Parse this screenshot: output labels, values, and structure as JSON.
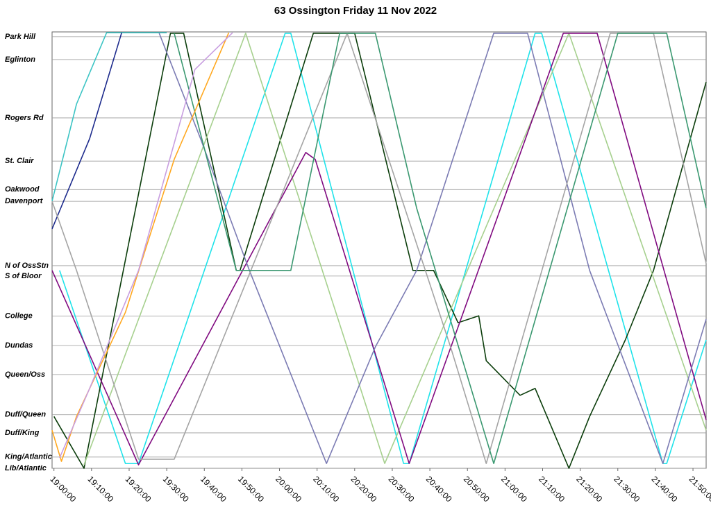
{
  "chart_data": {
    "type": "line",
    "title": "63 Ossington Friday 11 Nov 2022",
    "xlim": [
      "18:59:30",
      "21:53:30"
    ],
    "xticks": [
      "19:00:00",
      "19:10:00",
      "19:20:00",
      "19:30:00",
      "19:40:00",
      "19:50:00",
      "20:00:00",
      "20:10:00",
      "20:20:00",
      "20:30:00",
      "20:40:00",
      "20:50:00",
      "21:00:00",
      "21:10:00",
      "21:20:00",
      "21:30:00",
      "21:40:00",
      "21:50:00"
    ],
    "ylim": [
      0,
      101
    ],
    "yticks": [
      {
        "value": 99.9,
        "label": "Park Hill"
      },
      {
        "value": 94.6,
        "label": "Eglinton"
      },
      {
        "value": 81.1,
        "label": "Rogers Rd"
      },
      {
        "value": 71.1,
        "label": "St. Clair"
      },
      {
        "value": 64.5,
        "label": "Oakwood"
      },
      {
        "value": 61.8,
        "label": "Davenport"
      },
      {
        "value": 46.9,
        "label": "N of OssStn"
      },
      {
        "value": 44.5,
        "label": "S of Bloor"
      },
      {
        "value": 35.2,
        "label": "College"
      },
      {
        "value": 28.4,
        "label": "Dundas"
      },
      {
        "value": 21.7,
        "label": "Queen/Oss"
      },
      {
        "value": 12.4,
        "label": "Duff/Queen"
      },
      {
        "value": 8.2,
        "label": "Duff/King"
      },
      {
        "value": 2.6,
        "label": "King/Atlantic"
      },
      {
        "value": 0,
        "label": "Lib/Atlantic"
      }
    ],
    "grid": true,
    "series": [
      {
        "color": "#1ee3ea",
        "x": [
          "19:01:30",
          "19:19:00",
          "19:22:30",
          "20:01:30",
          "20:03:00",
          "20:33:00",
          "20:34:30",
          "21:08:00",
          "21:09:45",
          "21:42:00",
          "21:43:00",
          "21:53:30"
        ],
        "values": [
          45.8,
          1.1,
          1.1,
          100.7,
          100.7,
          1.1,
          1.1,
          100.7,
          100.7,
          1.1,
          1.1,
          29.7
        ]
      },
      {
        "color": "#3cc4c4",
        "x": [
          "18:59:30",
          "19:06:00",
          "19:14:00",
          "19:30:00"
        ],
        "values": [
          61.8,
          84.3,
          100.8,
          100.8
        ]
      },
      {
        "color": "#1c2a8c",
        "x": [
          "18:59:30",
          "19:09:30",
          "19:18:00"
        ],
        "values": [
          55.4,
          76.3,
          100.8
        ]
      },
      {
        "color": "#0b3d0b",
        "x": [
          "19:00:00",
          "19:08:00",
          "19:31:00",
          "19:34:30",
          "19:48:30",
          "19:49:30",
          "20:09:00",
          "20:20:00",
          "20:35:30",
          "20:41:00",
          "20:47:30",
          "20:53:00",
          "20:55:00",
          "21:04:00",
          "21:08:00",
          "21:17:00",
          "21:22:30",
          "21:32:00",
          "21:39:30",
          "21:53:30"
        ],
        "values": [
          12.0,
          0,
          100.7,
          100.7,
          45.8,
          45.8,
          100.7,
          100.7,
          45.8,
          45.8,
          33.7,
          35.3,
          24.9,
          16.9,
          18.5,
          0,
          12.0,
          29.7,
          45.8,
          89.4
        ]
      },
      {
        "color": "#a6d08e",
        "x": [
          "19:08:00",
          "19:51:00",
          "20:28:00",
          "21:17:00",
          "21:53:30"
        ],
        "values": [
          0.8,
          100.7,
          1.1,
          100.7,
          8.8
        ]
      },
      {
        "color": "#800a80",
        "x": [
          "18:59:30",
          "19:22:30",
          "20:07:00",
          "20:09:30",
          "20:34:30",
          "21:15:30",
          "21:24:30",
          "21:53:30"
        ],
        "values": [
          45.8,
          0.8,
          73.1,
          71.5,
          1.1,
          100.7,
          100.7,
          11.2
        ]
      },
      {
        "color": "#7b7bb3",
        "x": [
          "19:28:00",
          "19:39:00",
          "19:52:00",
          "20:12:30",
          "20:25:30",
          "20:36:30",
          "20:57:00",
          "21:06:00",
          "21:22:30",
          "21:42:00",
          "21:53:30"
        ],
        "values": [
          100.7,
          76.3,
          45.8,
          1.1,
          28.1,
          45.8,
          100.7,
          100.7,
          45.8,
          1.1,
          34.5
        ]
      },
      {
        "color": "#a4a4a4",
        "x": [
          "18:59:30",
          "19:06:00",
          "19:22:30",
          "19:32:00",
          "20:18:00",
          "20:45:30",
          "20:55:00",
          "21:28:00",
          "21:39:30",
          "21:53:30"
        ],
        "values": [
          61.8,
          45.8,
          2.1,
          2.1,
          100.7,
          28.1,
          1.1,
          100.7,
          100.7,
          47.4
        ]
      },
      {
        "color": "#3a9870",
        "x": [
          "19:32:00",
          "19:48:30",
          "20:03:00",
          "20:16:00",
          "20:25:30",
          "20:36:30",
          "20:57:00",
          "21:30:00",
          "21:43:00",
          "21:53:30"
        ],
        "values": [
          100.7,
          45.8,
          45.8,
          100.7,
          100.7,
          60.2,
          1.1,
          100.7,
          100.7,
          60.2
        ]
      },
      {
        "color": "#ffa820",
        "x": [
          "18:59:30",
          "19:02:00",
          "19:06:00",
          "19:19:00",
          "19:32:00",
          "19:46:30"
        ],
        "values": [
          8.8,
          1.6,
          12.0,
          36.1,
          71.5,
          100.8
        ]
      },
      {
        "color": "#c89ee0",
        "x": [
          "19:01:30",
          "19:09:30",
          "19:22:30",
          "19:37:30",
          "19:47:30"
        ],
        "values": [
          2.4,
          18.5,
          45.8,
          92.3,
          100.8
        ]
      }
    ]
  }
}
